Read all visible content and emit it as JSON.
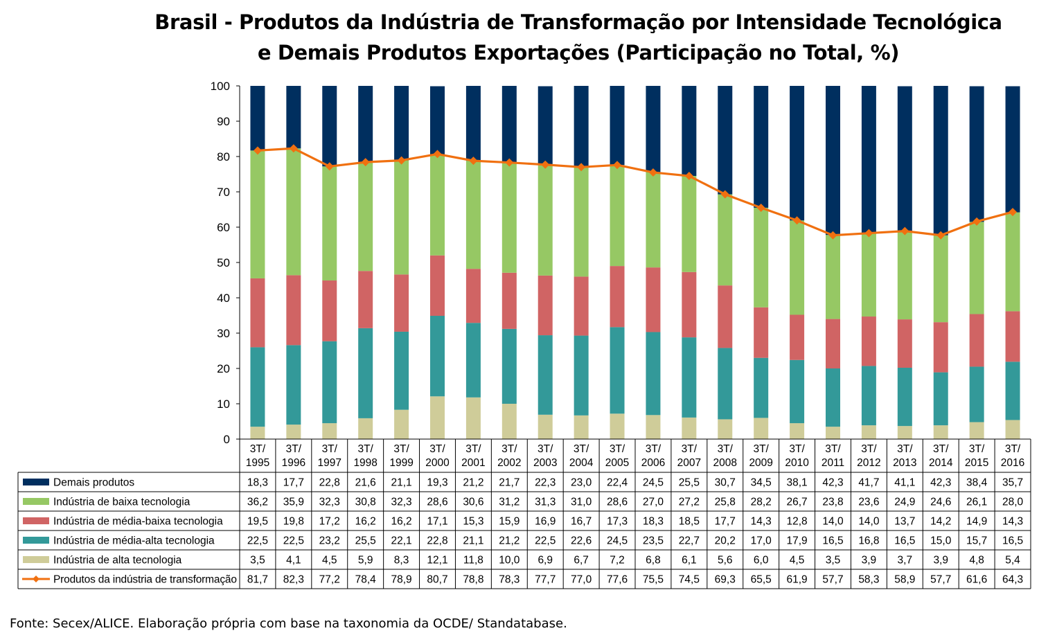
{
  "title_line1": "Brasil - Produtos da Indústria de Transformação por Intensidade Tecnológica",
  "title_line2": "e Demais Produtos Exportações (Participação no Total, %)",
  "source": "Fonte: Secex/ALICE. Elaboração própria com base na taxonomia da OCDE/ Standatabase.",
  "chart_data": {
    "type": "bar",
    "stacked": true,
    "ylim": [
      0,
      100
    ],
    "yticks": [
      0,
      10,
      20,
      30,
      40,
      50,
      60,
      70,
      80,
      90,
      100
    ],
    "grid": false,
    "legend": "data-table",
    "categories": [
      [
        "3T/",
        "1995"
      ],
      [
        "3T/",
        "1996"
      ],
      [
        "3T/",
        "1997"
      ],
      [
        "3T/",
        "1998"
      ],
      [
        "3T/",
        "1999"
      ],
      [
        "3T/",
        "2000"
      ],
      [
        "3T/",
        "2001"
      ],
      [
        "3T/",
        "2002"
      ],
      [
        "3T/",
        "2003"
      ],
      [
        "3T/",
        "2004"
      ],
      [
        "3T/",
        "2005"
      ],
      [
        "3T/",
        "2006"
      ],
      [
        "3T/",
        "2007"
      ],
      [
        "3T/",
        "2008"
      ],
      [
        "3T/",
        "2009"
      ],
      [
        "3T/",
        "2010"
      ],
      [
        "3T/",
        "2011"
      ],
      [
        "3T/",
        "2012"
      ],
      [
        "3T/",
        "2013"
      ],
      [
        "3T/",
        "2014"
      ],
      [
        "3T/",
        "2015"
      ],
      [
        "3T/",
        "2016"
      ]
    ],
    "series": [
      {
        "name": "Demais produtos",
        "color": "#002F5F",
        "kind": "bar",
        "values": [
          18.3,
          17.7,
          22.8,
          21.6,
          21.1,
          19.3,
          21.2,
          21.7,
          22.3,
          23.0,
          22.4,
          24.5,
          25.5,
          30.7,
          34.5,
          38.1,
          42.3,
          41.7,
          41.1,
          42.3,
          38.4,
          35.7
        ],
        "labels": [
          "18,3",
          "17,7",
          "22,8",
          "21,6",
          "21,1",
          "19,3",
          "21,2",
          "21,7",
          "22,3",
          "23,0",
          "22,4",
          "24,5",
          "25,5",
          "30,7",
          "34,5",
          "38,1",
          "42,3",
          "41,7",
          "41,1",
          "42,3",
          "38,4",
          "35,7"
        ]
      },
      {
        "name": "Indústria de baixa tecnologia",
        "color": "#96C864",
        "kind": "bar",
        "values": [
          36.2,
          35.9,
          32.3,
          30.8,
          32.3,
          28.6,
          30.6,
          31.2,
          31.3,
          31.0,
          28.6,
          27.0,
          27.2,
          25.8,
          28.2,
          26.7,
          23.8,
          23.6,
          24.9,
          24.6,
          26.1,
          28.0
        ],
        "labels": [
          "36,2",
          "35,9",
          "32,3",
          "30,8",
          "32,3",
          "28,6",
          "30,6",
          "31,2",
          "31,3",
          "31,0",
          "28,6",
          "27,0",
          "27,2",
          "25,8",
          "28,2",
          "26,7",
          "23,8",
          "23,6",
          "24,9",
          "24,6",
          "26,1",
          "28,0"
        ]
      },
      {
        "name": "Indústria de média-baixa tecnologia",
        "color": "#D06464",
        "kind": "bar",
        "values": [
          19.5,
          19.8,
          17.2,
          16.2,
          16.2,
          17.1,
          15.3,
          15.9,
          16.9,
          16.7,
          17.3,
          18.3,
          18.5,
          17.7,
          14.3,
          12.8,
          14.0,
          14.0,
          13.7,
          14.2,
          14.9,
          14.3
        ],
        "labels": [
          "19,5",
          "19,8",
          "17,2",
          "16,2",
          "16,2",
          "17,1",
          "15,3",
          "15,9",
          "16,9",
          "16,7",
          "17,3",
          "18,3",
          "18,5",
          "17,7",
          "14,3",
          "12,8",
          "14,0",
          "14,0",
          "13,7",
          "14,2",
          "14,9",
          "14,3"
        ]
      },
      {
        "name": "Indústria de média-alta tecnologia",
        "color": "#339999",
        "kind": "bar",
        "values": [
          22.5,
          22.5,
          23.2,
          25.5,
          22.1,
          22.8,
          21.1,
          21.2,
          22.5,
          22.6,
          24.5,
          23.5,
          22.7,
          20.2,
          17.0,
          17.9,
          16.5,
          16.8,
          16.5,
          15.0,
          15.7,
          16.5
        ],
        "labels": [
          "22,5",
          "22,5",
          "23,2",
          "25,5",
          "22,1",
          "22,8",
          "21,1",
          "21,2",
          "22,5",
          "22,6",
          "24,5",
          "23,5",
          "22,7",
          "20,2",
          "17,0",
          "17,9",
          "16,5",
          "16,8",
          "16,5",
          "15,0",
          "15,7",
          "16,5"
        ]
      },
      {
        "name": "Indústria de alta tecnologia",
        "color": "#CFCC99",
        "kind": "bar",
        "values": [
          3.5,
          4.1,
          4.5,
          5.9,
          8.3,
          12.1,
          11.8,
          10.0,
          6.9,
          6.7,
          7.2,
          6.8,
          6.1,
          5.6,
          6.0,
          4.5,
          3.5,
          3.9,
          3.7,
          3.9,
          4.8,
          5.4
        ],
        "labels": [
          "3,5",
          "4,1",
          "4,5",
          "5,9",
          "8,3",
          "12,1",
          "11,8",
          "10,0",
          "6,9",
          "6,7",
          "7,2",
          "6,8",
          "6,1",
          "5,6",
          "6,0",
          "4,5",
          "3,5",
          "3,9",
          "3,7",
          "3,9",
          "4,8",
          "5,4"
        ]
      },
      {
        "name": "Produtos da indústria de transformação",
        "color": "#F07010",
        "kind": "line",
        "values": [
          81.7,
          82.3,
          77.2,
          78.4,
          78.9,
          80.7,
          78.8,
          78.3,
          77.7,
          77.0,
          77.6,
          75.5,
          74.5,
          69.3,
          65.5,
          61.9,
          57.7,
          58.3,
          58.9,
          57.7,
          61.6,
          64.3
        ],
        "labels": [
          "81,7",
          "82,3",
          "77,2",
          "78,4",
          "78,9",
          "80,7",
          "78,8",
          "78,3",
          "77,7",
          "77,0",
          "77,6",
          "75,5",
          "74,5",
          "69,3",
          "65,5",
          "61,9",
          "57,7",
          "58,3",
          "58,9",
          "57,7",
          "61,6",
          "64,3"
        ]
      }
    ]
  }
}
